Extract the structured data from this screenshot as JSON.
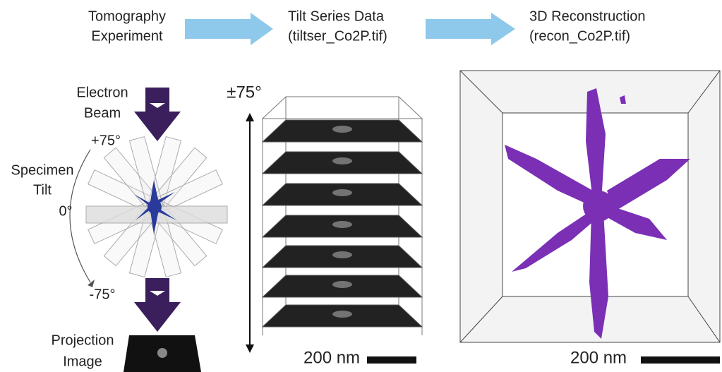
{
  "workflow": {
    "steps": [
      {
        "lines": [
          "Tomography",
          "Experiment"
        ]
      },
      {
        "lines": [
          "Tilt Series Data",
          "(tiltser_Co2P.tif)"
        ]
      },
      {
        "lines": [
          "3D Reconstruction",
          "(recon_Co2P.tif)"
        ]
      }
    ]
  },
  "experiment": {
    "beam_label": [
      "Electron",
      "Beam"
    ],
    "tilt_label": [
      "Specimen",
      "Tilt"
    ],
    "angles": [
      "+75°",
      "0°",
      "-75°"
    ],
    "projection_label": [
      "Projection",
      "Image"
    ]
  },
  "tilt_series": {
    "range_label": "±75°",
    "scale_bar": "200 nm"
  },
  "reconstruction": {
    "scale_bar": "200 nm"
  }
}
